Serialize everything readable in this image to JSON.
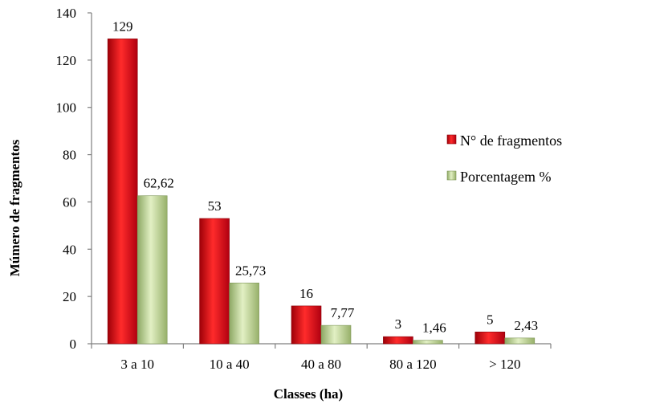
{
  "chart_data": {
    "type": "bar",
    "categories": [
      "3 a 10",
      "10 a 40",
      "40 a 80",
      "80 a 120",
      "> 120"
    ],
    "series": [
      {
        "name": "N° de fragmentos",
        "values": [
          129,
          53,
          16,
          3,
          5
        ],
        "labels": [
          "129",
          "53",
          "16",
          "3",
          "5"
        ],
        "color": "#d7000f"
      },
      {
        "name": "Porcentagem %",
        "values": [
          62.62,
          25.73,
          7.77,
          1.46,
          2.43
        ],
        "labels": [
          "62,62",
          "25,73",
          "7,77",
          "1,46",
          "2,43"
        ],
        "color": "#b6cf8c"
      }
    ],
    "xlabel": "Classes (ha)",
    "ylabel": "Múmero de fragmentos",
    "ylim": [
      0,
      140
    ],
    "yticks": [
      0,
      20,
      40,
      60,
      80,
      100,
      120,
      140
    ],
    "grid": false,
    "legend_position": "right"
  }
}
